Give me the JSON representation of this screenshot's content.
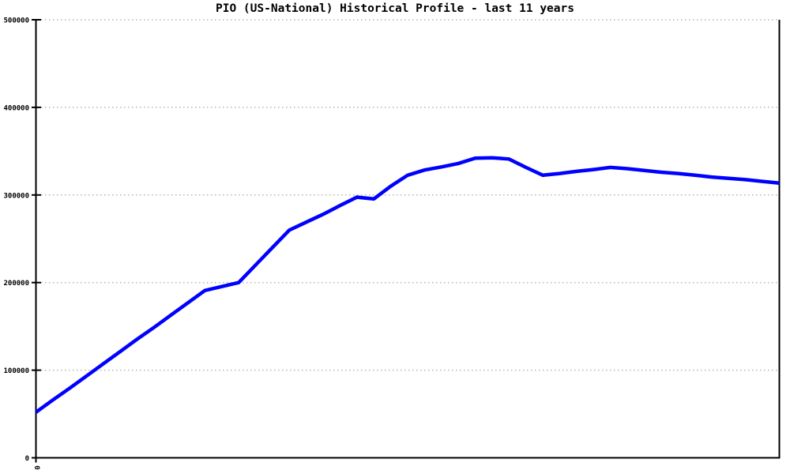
{
  "page": {
    "background": "#ffffff",
    "text_color": "#000000"
  },
  "chart_data": {
    "type": "line",
    "title": "PIO (US-National) Historical Profile - last 11 years",
    "xlabel": "",
    "ylabel": "",
    "xlim": [
      0,
      11
    ],
    "ylim": [
      0,
      500000
    ],
    "x_start": 0,
    "x_step": 0.25,
    "yticks": [
      0,
      100000,
      200000,
      300000,
      400000,
      500000
    ],
    "ytick_labels": [
      "0",
      "100000",
      "200000",
      "300000",
      "400000",
      "500000"
    ],
    "xticks": [
      0
    ],
    "xtick_labels": [
      "0"
    ],
    "grid": {
      "horizontal": true,
      "vertical": false,
      "style": "dotted",
      "color": "#b5b5b5"
    },
    "axis_color": "#000000",
    "legend": "none",
    "series": [
      {
        "name": "PIO historical profile",
        "color": "#0000ff",
        "values": [
          52000,
          66000,
          79500,
          93500,
          107500,
          121500,
          135500,
          149000,
          163000,
          177000,
          191000,
          195500,
          200000,
          220000,
          240000,
          260000,
          269000,
          278000,
          288000,
          297500,
          295500,
          310000,
          322500,
          328500,
          332000,
          336000,
          342000,
          342500,
          341000,
          331500,
          322500,
          324500,
          327000,
          329000,
          331500,
          330000,
          328000,
          326000,
          324500,
          322500,
          320500,
          319000,
          317500,
          315500,
          313500
        ]
      }
    ]
  }
}
